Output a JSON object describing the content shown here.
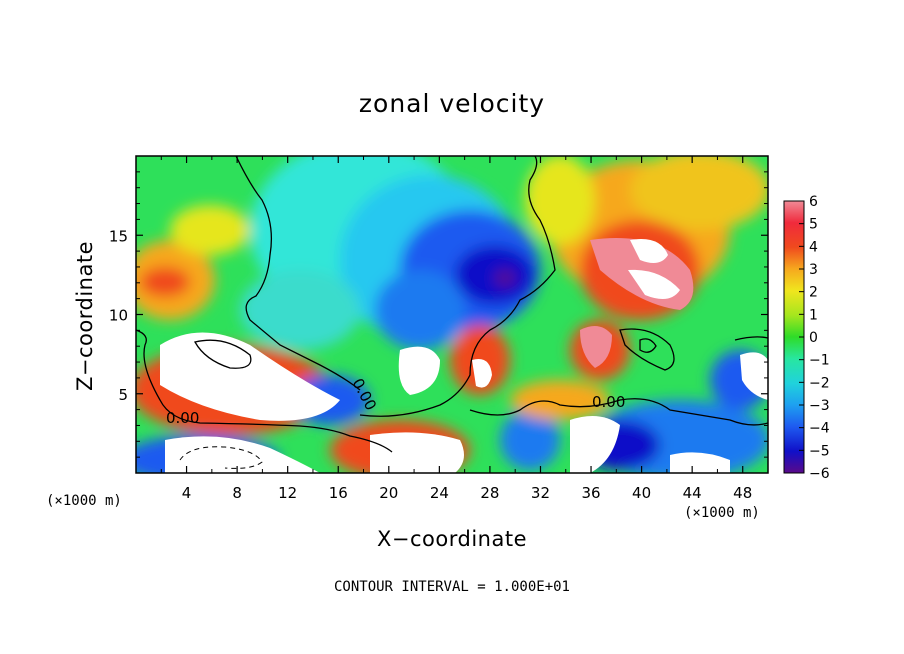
{
  "chart_data": {
    "type": "heatmap",
    "title": "zonal velocity",
    "xlabel": "X−coordinate",
    "ylabel": "Z−coordinate",
    "x_unit_left": "(×1000 m)",
    "x_unit_right": "(×1000 m)",
    "footer": "CONTOUR INTERVAL = 1.000E+01",
    "xlim": [
      0,
      50
    ],
    "ylim": [
      0,
      20
    ],
    "x_ticks": [
      "4",
      "8",
      "12",
      "16",
      "20",
      "24",
      "28",
      "32",
      "36",
      "40",
      "44",
      "48"
    ],
    "x_tick_values": [
      4,
      8,
      12,
      16,
      20,
      24,
      28,
      32,
      36,
      40,
      44,
      48
    ],
    "y_ticks": [
      "5",
      "10",
      "15"
    ],
    "y_tick_values": [
      5,
      10,
      15
    ],
    "colorbar": {
      "min": -6,
      "max": 6,
      "ticks": [
        "6",
        "5",
        "4",
        "3",
        "2",
        "1",
        "0",
        "−1",
        "−2",
        "−3",
        "−4",
        "−5",
        "−6"
      ],
      "colors": [
        "#5a0a8a",
        "#1010c8",
        "#1e5af0",
        "#1ea0f0",
        "#20d2dc",
        "#28e6a0",
        "#2edc28",
        "#a6e61e",
        "#f0e61e",
        "#f6a81e",
        "#f04a1e",
        "#f02a3c",
        "#f08a96",
        "#ffffff"
      ]
    },
    "contour_labels": [
      "0.00",
      "0.00",
      "0.00"
    ],
    "zero_contour_level": 0.0,
    "grid": false
  }
}
